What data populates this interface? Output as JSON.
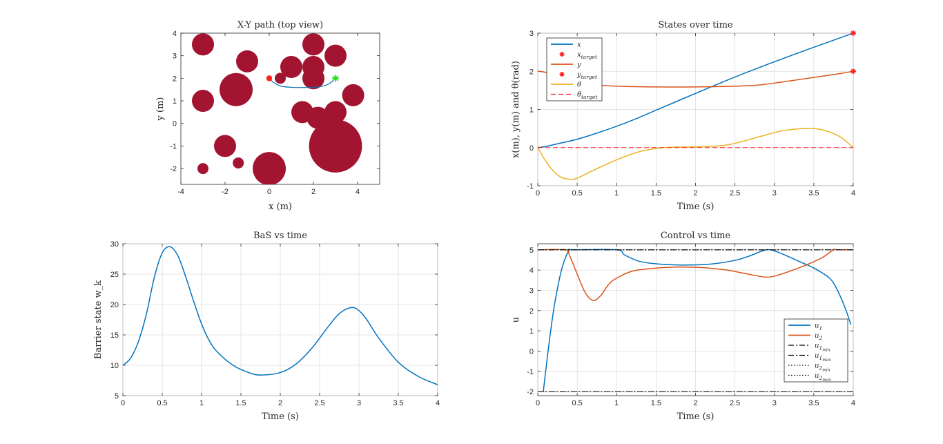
{
  "figure": {
    "background": "#ffffff"
  },
  "chart_data": [
    {
      "id": "xy",
      "type": "scatter",
      "title": "X-Y path (top view)",
      "xlabel": "x (m)",
      "ylabel": "y (m)",
      "xlim": [
        -4,
        5
      ],
      "ylim": [
        -2.7,
        4
      ],
      "xticks": [
        -4,
        -2,
        0,
        2,
        4
      ],
      "xtick_labels": [
        "-4",
        "-2",
        "0",
        "2",
        "4"
      ],
      "yticks": [
        -2,
        -1,
        0,
        1,
        2,
        3,
        4
      ],
      "ytick_labels": [
        "-2",
        "-1",
        "0",
        "1",
        "2",
        "3",
        "4"
      ],
      "grid": false,
      "obstacle_color": "#A2142F",
      "obstacles": [
        {
          "x": -3.0,
          "y": 3.5,
          "r": 0.5
        },
        {
          "x": -1.0,
          "y": 2.75,
          "r": 0.5
        },
        {
          "x": 0.5,
          "y": 2.0,
          "r": 0.25
        },
        {
          "x": 1.0,
          "y": 2.5,
          "r": 0.5
        },
        {
          "x": 2.0,
          "y": 3.5,
          "r": 0.5
        },
        {
          "x": 3.0,
          "y": 3.0,
          "r": 0.5
        },
        {
          "x": 2.0,
          "y": 2.5,
          "r": 0.5
        },
        {
          "x": 2.0,
          "y": 2.0,
          "r": 0.5
        },
        {
          "x": -1.5,
          "y": 1.5,
          "r": 0.75
        },
        {
          "x": -3.0,
          "y": 1.0,
          "r": 0.5
        },
        {
          "x": 1.5,
          "y": 0.5,
          "r": 0.5
        },
        {
          "x": 3.0,
          "y": 0.5,
          "r": 0.5
        },
        {
          "x": 2.2,
          "y": 0.25,
          "r": 0.5
        },
        {
          "x": 3.8,
          "y": 1.25,
          "r": 0.5
        },
        {
          "x": 3.0,
          "y": -1.0,
          "r": 1.2
        },
        {
          "x": -2.0,
          "y": -1.0,
          "r": 0.5
        },
        {
          "x": -1.4,
          "y": -1.75,
          "r": 0.25
        },
        {
          "x": -3.0,
          "y": -2.0,
          "r": 0.25
        },
        {
          "x": 0.0,
          "y": -2.0,
          "r": 0.75
        }
      ],
      "path": {
        "color": "#0072BD",
        "points": [
          [
            0.0,
            2.0
          ],
          [
            0.15,
            1.85
          ],
          [
            0.5,
            1.66
          ],
          [
            1.0,
            1.6
          ],
          [
            1.5,
            1.59
          ],
          [
            2.0,
            1.6
          ],
          [
            2.4,
            1.65
          ],
          [
            2.7,
            1.75
          ],
          [
            3.0,
            2.0
          ]
        ]
      },
      "start": {
        "x": 0.0,
        "y": 2.0,
        "color": "#ff2020"
      },
      "goal": {
        "x": 3.0,
        "y": 2.0,
        "color": "#22dd22"
      }
    },
    {
      "id": "states",
      "type": "line",
      "title": "States over time",
      "xlabel": "Time (s)",
      "ylabel": "x(m), y(m) and θ(rad)",
      "xlim": [
        0,
        4
      ],
      "ylim": [
        -1,
        3
      ],
      "xticks": [
        0,
        0.5,
        1,
        1.5,
        2,
        2.5,
        3,
        3.5,
        4
      ],
      "xtick_labels": [
        "0",
        "0.5",
        "1",
        "1.5",
        "2",
        "2.5",
        "3",
        "3.5",
        "4"
      ],
      "yticks": [
        -1,
        0,
        1,
        2,
        3
      ],
      "ytick_labels": [
        "-1",
        "0",
        "1",
        "2",
        "3"
      ],
      "grid": true,
      "legend_location": "top-left",
      "series": [
        {
          "name": "x",
          "style": "line",
          "color": "#0072BD",
          "x": [
            0,
            0.1,
            0.25,
            0.5,
            0.75,
            1,
            1.25,
            1.5,
            2,
            2.5,
            3,
            3.5,
            4
          ],
          "y": [
            0,
            0.03,
            0.1,
            0.22,
            0.38,
            0.56,
            0.76,
            0.98,
            1.42,
            1.85,
            2.25,
            2.63,
            3.0
          ]
        },
        {
          "name": "x_target",
          "style": "marker",
          "color": "#ff2020",
          "x": [
            4
          ],
          "y": [
            3
          ]
        },
        {
          "name": "y",
          "style": "line",
          "color": "#D95319",
          "x": [
            0,
            0.1,
            0.3,
            0.6,
            1,
            1.5,
            2,
            2.5,
            2.8,
            3.1,
            3.5,
            3.8,
            4
          ],
          "y": [
            2.0,
            1.97,
            1.82,
            1.68,
            1.61,
            1.59,
            1.59,
            1.61,
            1.64,
            1.72,
            1.84,
            1.93,
            2.0
          ]
        },
        {
          "name": "y_target",
          "style": "marker",
          "color": "#ff2020",
          "x": [
            4
          ],
          "y": [
            2
          ]
        },
        {
          "name": "θ",
          "style": "line",
          "color": "#EDB120",
          "x": [
            0,
            0.1,
            0.2,
            0.3,
            0.4,
            0.5,
            0.7,
            1.0,
            1.3,
            1.6,
            2.0,
            2.4,
            2.8,
            3.1,
            3.4,
            3.6,
            3.8,
            3.9,
            4.0
          ],
          "y": [
            0,
            -0.35,
            -0.62,
            -0.78,
            -0.83,
            -0.8,
            -0.6,
            -0.32,
            -0.1,
            0.0,
            0.02,
            0.07,
            0.28,
            0.44,
            0.5,
            0.47,
            0.32,
            0.18,
            0.0
          ]
        },
        {
          "name": "θ_target",
          "style": "dashed",
          "color": "#ff2020",
          "x": [
            0,
            4
          ],
          "y": [
            0,
            0
          ]
        }
      ],
      "legend": [
        {
          "label": "x",
          "sub": "",
          "style": "line",
          "color": "#0072BD"
        },
        {
          "label": "x",
          "sub": "target",
          "style": "marker",
          "color": "#ff2020"
        },
        {
          "label": "y",
          "sub": "",
          "style": "line",
          "color": "#D95319"
        },
        {
          "label": "y",
          "sub": "target",
          "style": "marker",
          "color": "#ff2020"
        },
        {
          "label": "θ",
          "sub": "",
          "style": "line",
          "color": "#EDB120"
        },
        {
          "label": "θ",
          "sub": "target",
          "style": "dashed",
          "color": "#ff2020"
        }
      ]
    },
    {
      "id": "bas",
      "type": "line",
      "title": "BaS vs time",
      "xlabel": "Time (s)",
      "ylabel": "Barrier state w_k",
      "xlim": [
        0,
        4
      ],
      "ylim": [
        5,
        30
      ],
      "xticks": [
        0,
        0.5,
        1,
        1.5,
        2,
        2.5,
        3,
        3.5,
        4
      ],
      "xtick_labels": [
        "0",
        "0.5",
        "1",
        "1.5",
        "2",
        "2.5",
        "3",
        "3.5",
        "4"
      ],
      "yticks": [
        5,
        10,
        15,
        20,
        25,
        30
      ],
      "ytick_labels": [
        "5",
        "10",
        "15",
        "20",
        "25",
        "30"
      ],
      "grid": true,
      "series": [
        {
          "name": "",
          "color": "#0072BD",
          "x": [
            0,
            0.1,
            0.2,
            0.3,
            0.4,
            0.5,
            0.6,
            0.7,
            0.8,
            0.9,
            1.0,
            1.1,
            1.2,
            1.4,
            1.6,
            1.75,
            2.0,
            2.2,
            2.4,
            2.6,
            2.75,
            2.9,
            3.0,
            3.1,
            3.25,
            3.5,
            3.75,
            4.0
          ],
          "y": [
            10,
            11.2,
            14,
            18.5,
            24.5,
            28.5,
            29.5,
            28,
            24.5,
            20.5,
            16.8,
            14,
            12.2,
            10,
            8.8,
            8.4,
            8.8,
            10.2,
            12.8,
            16.2,
            18.5,
            19.5,
            19,
            17.5,
            14.5,
            10.5,
            8.2,
            6.8
          ]
        }
      ]
    },
    {
      "id": "control",
      "type": "line",
      "title": "Control vs time",
      "xlabel": "Time (s)",
      "ylabel": "u",
      "xlim": [
        0,
        4
      ],
      "ylim": [
        -2.2,
        5.3
      ],
      "xticks": [
        0,
        0.5,
        1,
        1.5,
        2,
        2.5,
        3,
        3.5,
        4
      ],
      "xtick_labels": [
        "0",
        "0.5",
        "1",
        "1.5",
        "2",
        "2.5",
        "3",
        "3.5",
        "4"
      ],
      "yticks": [
        -2,
        -1,
        0,
        1,
        2,
        3,
        4,
        5
      ],
      "ytick_labels": [
        "-2",
        "-1",
        "0",
        "1",
        "2",
        "3",
        "4",
        "5"
      ],
      "grid": true,
      "legend_location": "bottom-right",
      "series": [
        {
          "name": "u1",
          "style": "line",
          "color": "#0072BD",
          "x": [
            0.07,
            0.1,
            0.15,
            0.2,
            0.25,
            0.3,
            0.35,
            0.4,
            0.45,
            1.0,
            1.1,
            1.3,
            1.6,
            1.9,
            2.2,
            2.5,
            2.7,
            2.85,
            2.95,
            3.1,
            3.3,
            3.5,
            3.7,
            3.8,
            3.9,
            3.97
          ],
          "y": [
            -2,
            -1.0,
            0.6,
            2.0,
            3.1,
            4.0,
            4.6,
            5.0,
            5.0,
            5.0,
            4.75,
            4.42,
            4.28,
            4.25,
            4.3,
            4.48,
            4.72,
            4.95,
            5.0,
            4.8,
            4.45,
            4.1,
            3.6,
            3.0,
            2.1,
            1.3
          ]
        },
        {
          "name": "u2",
          "style": "line",
          "color": "#D95319",
          "x": [
            0,
            0.35,
            0.4,
            0.5,
            0.6,
            0.7,
            0.8,
            0.9,
            1.0,
            1.2,
            1.5,
            1.8,
            2.1,
            2.4,
            2.6,
            2.8,
            2.9,
            3.0,
            3.2,
            3.4,
            3.6,
            3.75,
            3.8,
            4.0
          ],
          "y": [
            5,
            5,
            4.75,
            3.8,
            2.9,
            2.5,
            2.75,
            3.3,
            3.6,
            3.95,
            4.1,
            4.15,
            4.12,
            4.0,
            3.85,
            3.7,
            3.65,
            3.7,
            3.95,
            4.25,
            4.6,
            5.0,
            5.0,
            5.0
          ]
        },
        {
          "name": "u1_min",
          "style": "dashdot",
          "color": "#000000",
          "x": [
            0,
            4
          ],
          "y": [
            -2,
            -2
          ]
        },
        {
          "name": "u1_max",
          "style": "dashdot",
          "color": "#000000",
          "x": [
            0,
            4
          ],
          "y": [
            5,
            5
          ]
        },
        {
          "name": "u2_min",
          "style": "dotted",
          "color": "#000000",
          "x": [
            0,
            4
          ],
          "y": [
            -2,
            -2
          ]
        },
        {
          "name": "u2_max",
          "style": "dotted",
          "color": "#000000",
          "x": [
            0,
            4
          ],
          "y": [
            5,
            5
          ]
        }
      ],
      "legend": [
        {
          "label": "u",
          "sub": "1",
          "subsub": "",
          "style": "line",
          "color": "#0072BD"
        },
        {
          "label": "u",
          "sub": "2",
          "subsub": "",
          "style": "line",
          "color": "#D95319"
        },
        {
          "label": "u",
          "sub": "1",
          "subsub": "min",
          "style": "dashdot",
          "color": "#000000"
        },
        {
          "label": "u",
          "sub": "1",
          "subsub": "max",
          "style": "dashdot",
          "color": "#000000"
        },
        {
          "label": "u",
          "sub": "2",
          "subsub": "min",
          "style": "dotted",
          "color": "#000000"
        },
        {
          "label": "u",
          "sub": "2",
          "subsub": "max",
          "style": "dotted",
          "color": "#000000"
        }
      ]
    }
  ]
}
